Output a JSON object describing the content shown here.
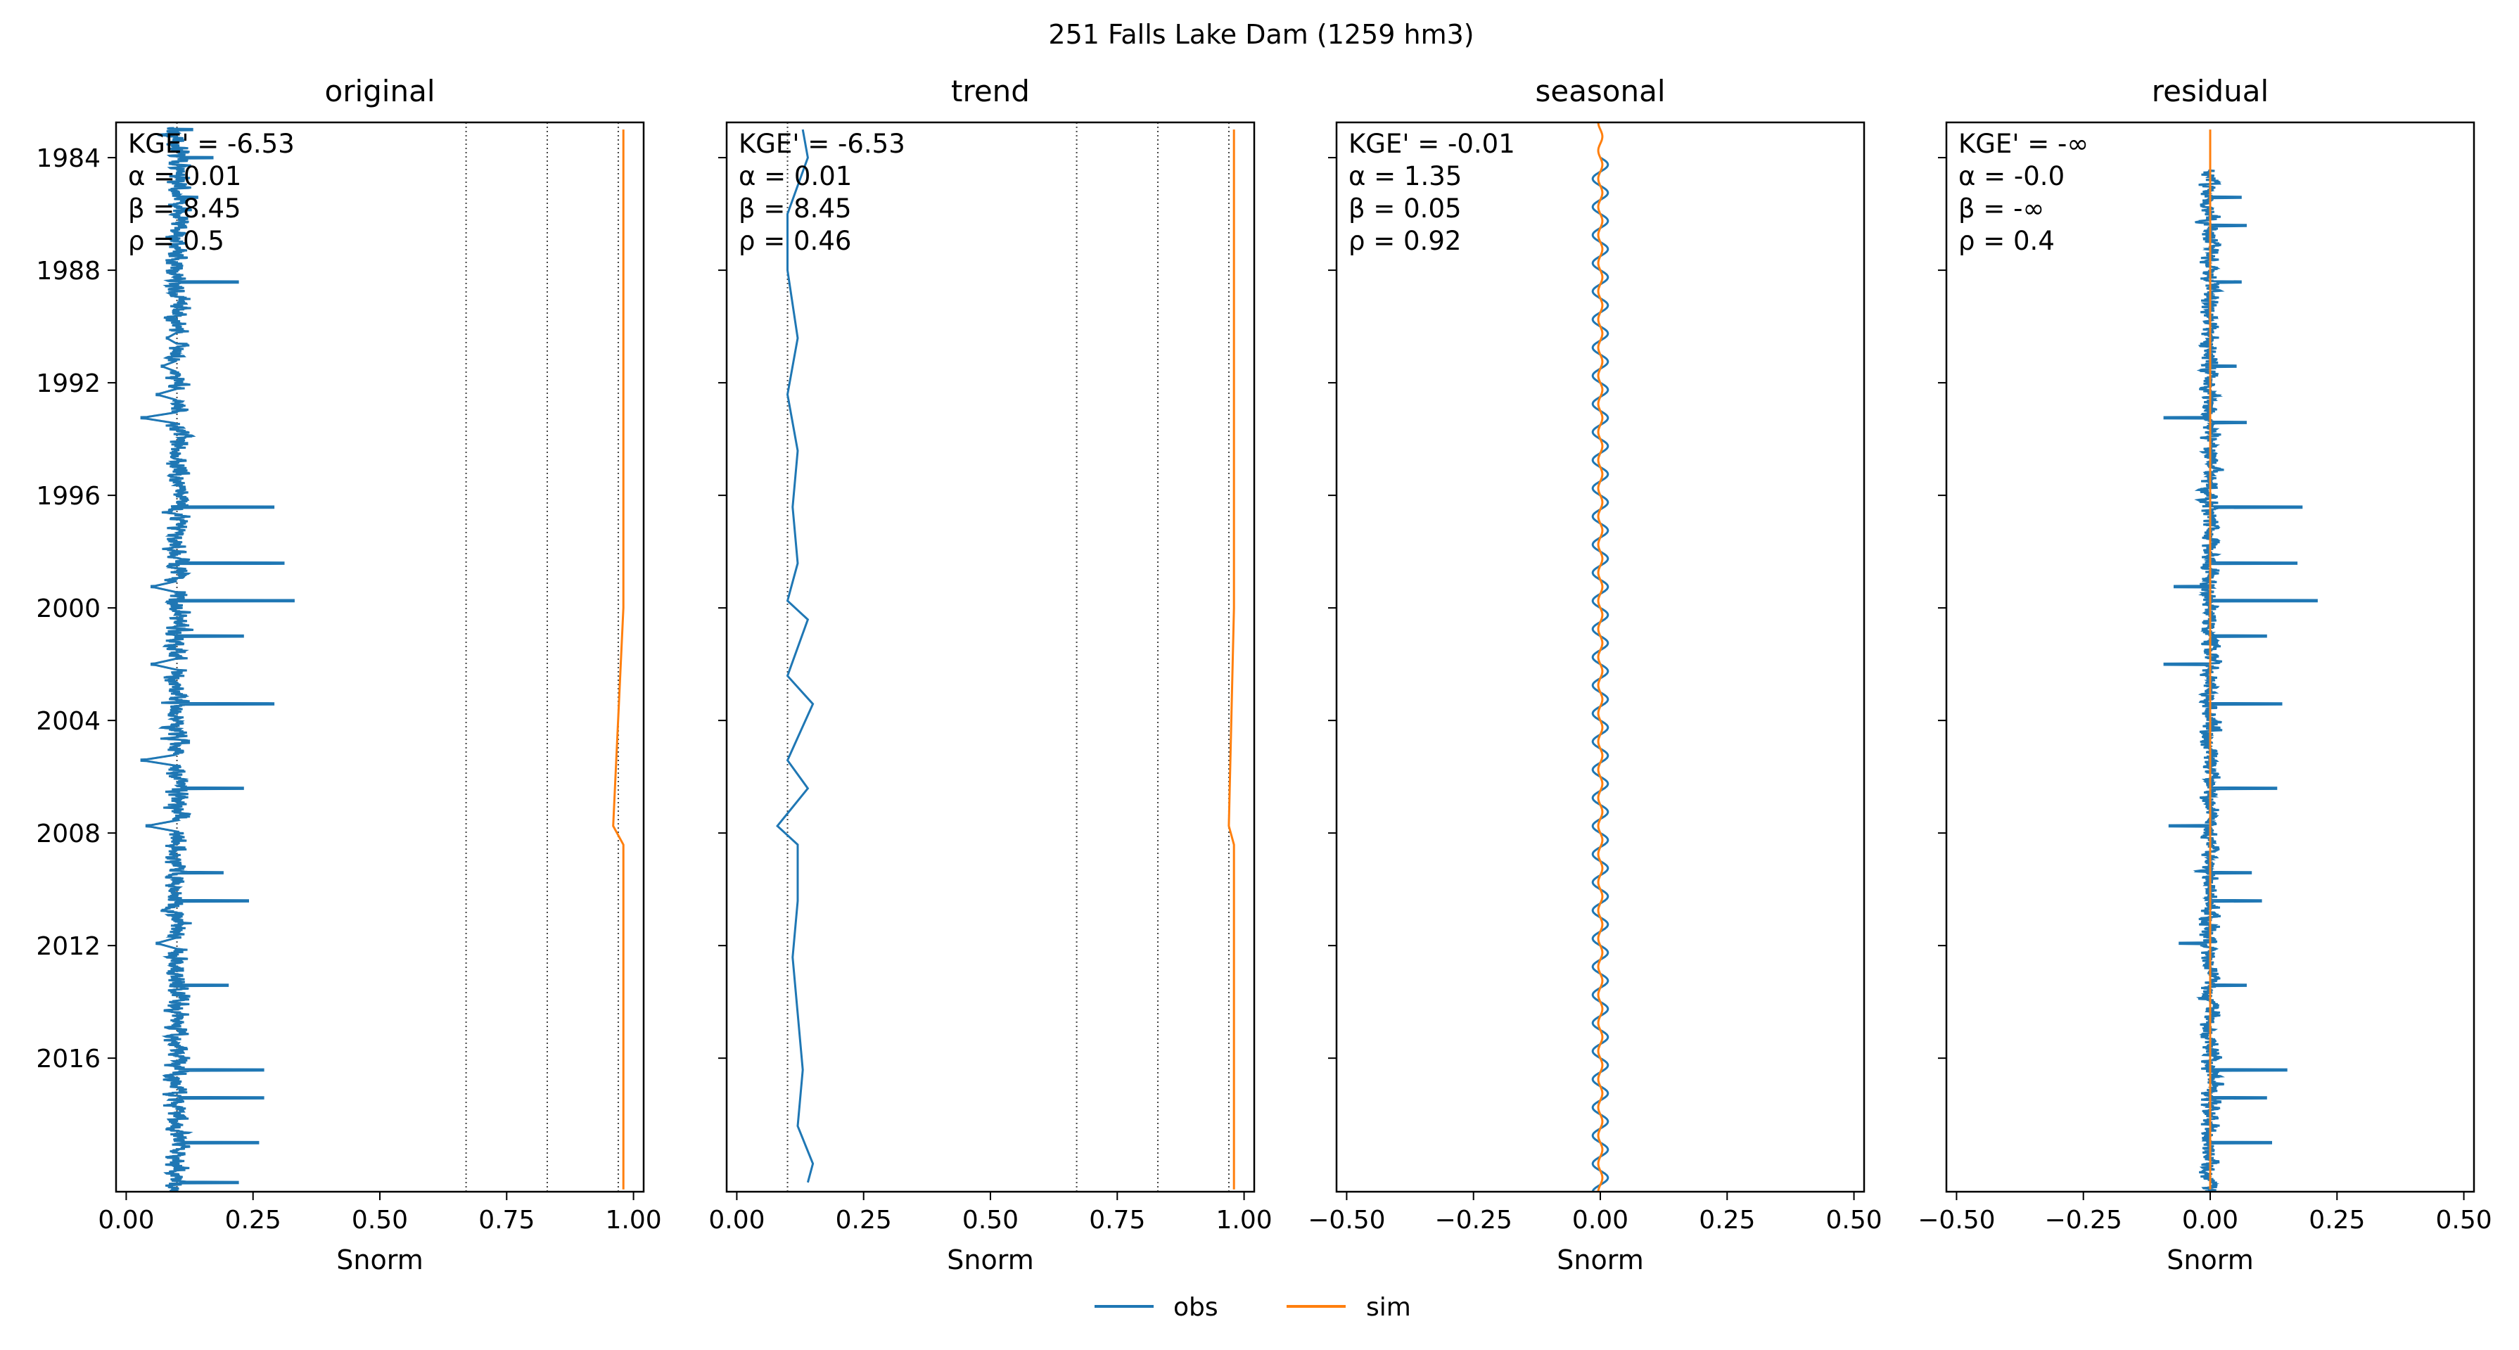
{
  "figure": {
    "title": "251  Falls Lake Dam (1259 hm3)"
  },
  "legend": {
    "items": [
      {
        "label": "obs",
        "color": "#1f77b4"
      },
      {
        "label": "sim",
        "color": "#ff7f0e"
      }
    ],
    "placement": "bottom-center"
  },
  "colors": {
    "obs": "#1f77b4",
    "sim": "#ff7f0e",
    "axes": "#000000"
  },
  "chart_data": [
    {
      "type": "line",
      "title": "original",
      "xlabel": "Snorm",
      "ylabel": "",
      "xlim": [
        -0.02,
        1.02
      ],
      "ylim": [
        "1982-10-01",
        "2020-09-30"
      ],
      "xticks": [
        "0.00",
        "0.25",
        "0.50",
        "0.75",
        "1.00"
      ],
      "yticks": [
        "1984",
        "1988",
        "1992",
        "1996",
        "2000",
        "2004",
        "2008",
        "2012",
        "2016"
      ],
      "reference_lines_x": [
        0.1,
        0.67,
        0.83,
        0.97
      ],
      "stats": [
        "KGE' = -6.53",
        "α = 0.01",
        "β = 8.45",
        "ρ = 0.5"
      ],
      "series": [
        {
          "name": "obs",
          "description": "daily normalized storage, base about 0.10 with spikes",
          "points": [
            [
              "1983-01-01",
              0.13
            ],
            [
              "1984-01-01",
              0.17
            ],
            [
              "1985-06-01",
              0.14
            ],
            [
              "1986-03-01",
              0.12
            ],
            [
              "1987-01-01",
              0.11
            ],
            [
              "1988-06-01",
              0.22
            ],
            [
              "1989-10-01",
              0.1
            ],
            [
              "1990-06-01",
              0.08
            ],
            [
              "1991-06-01",
              0.07
            ],
            [
              "1992-06-01",
              0.06
            ],
            [
              "1993-04-01",
              0.03
            ],
            [
              "1994-03-01",
              0.12
            ],
            [
              "1996-06-01",
              0.29
            ],
            [
              "1998-06-01",
              0.31
            ],
            [
              "1999-04-01",
              0.05
            ],
            [
              "1999-10-01",
              0.33
            ],
            [
              "2001-01-01",
              0.23
            ],
            [
              "2002-01-01",
              0.05
            ],
            [
              "2003-06-01",
              0.29
            ],
            [
              "2005-06-01",
              0.03
            ],
            [
              "2006-06-01",
              0.23
            ],
            [
              "2007-10-01",
              0.04
            ],
            [
              "2009-06-01",
              0.19
            ],
            [
              "2010-06-01",
              0.24
            ],
            [
              "2011-12-01",
              0.06
            ],
            [
              "2013-06-01",
              0.2
            ],
            [
              "2016-06-01",
              0.27
            ],
            [
              "2017-06-01",
              0.27
            ],
            [
              "2019-01-01",
              0.26
            ],
            [
              "2020-06-01",
              0.22
            ]
          ]
        },
        {
          "name": "sim",
          "description": "nearly constant near 0.98",
          "points": [
            [
              "1983-01-01",
              0.98
            ],
            [
              "1991-01-01",
              0.98
            ],
            [
              "2000-01-01",
              0.98
            ],
            [
              "2007-10-01",
              0.96
            ],
            [
              "2008-06-01",
              0.98
            ],
            [
              "2020-09-01",
              0.98
            ]
          ]
        }
      ]
    },
    {
      "type": "line",
      "title": "trend",
      "xlabel": "Snorm",
      "ylabel": "",
      "xlim": [
        -0.02,
        1.02
      ],
      "ylim": [
        "1982-10-01",
        "2020-09-30"
      ],
      "xticks": [
        "0.00",
        "0.25",
        "0.50",
        "0.75",
        "1.00"
      ],
      "yticks": [],
      "reference_lines_x": [
        0.1,
        0.67,
        0.83,
        0.97
      ],
      "stats": [
        "KGE' = -6.53",
        "α = 0.01",
        "β = 8.45",
        "ρ = 0.46"
      ],
      "series": [
        {
          "name": "obs",
          "description": "smoothed trend near 0.10",
          "points": [
            [
              "1983-01-01",
              0.13
            ],
            [
              "1984-01-01",
              0.14
            ],
            [
              "1986-01-01",
              0.1
            ],
            [
              "1988-01-01",
              0.1
            ],
            [
              "1990-06-01",
              0.12
            ],
            [
              "1992-06-01",
              0.1
            ],
            [
              "1994-06-01",
              0.12
            ],
            [
              "1996-06-01",
              0.11
            ],
            [
              "1998-06-01",
              0.12
            ],
            [
              "1999-10-01",
              0.1
            ],
            [
              "2000-06-01",
              0.14
            ],
            [
              "2002-06-01",
              0.1
            ],
            [
              "2003-06-01",
              0.15
            ],
            [
              "2005-06-01",
              0.1
            ],
            [
              "2006-06-01",
              0.14
            ],
            [
              "2007-10-01",
              0.08
            ],
            [
              "2008-06-01",
              0.12
            ],
            [
              "2010-06-01",
              0.12
            ],
            [
              "2012-06-01",
              0.11
            ],
            [
              "2014-06-01",
              0.12
            ],
            [
              "2016-06-01",
              0.13
            ],
            [
              "2018-06-01",
              0.12
            ],
            [
              "2019-10-01",
              0.15
            ],
            [
              "2020-06-01",
              0.14
            ]
          ]
        },
        {
          "name": "sim",
          "description": "nearly constant near 0.98",
          "points": [
            [
              "1983-01-01",
              0.98
            ],
            [
              "2000-01-01",
              0.98
            ],
            [
              "2007-10-01",
              0.97
            ],
            [
              "2008-06-01",
              0.98
            ],
            [
              "2020-09-01",
              0.98
            ]
          ]
        }
      ]
    },
    {
      "type": "line",
      "title": "seasonal",
      "xlabel": "Snorm",
      "ylabel": "",
      "xlim": [
        -0.52,
        0.52
      ],
      "ylim": [
        "1982-10-01",
        "2020-09-30"
      ],
      "xticks": [
        "−0.50",
        "−0.25",
        "0.00",
        "0.25",
        "0.50"
      ],
      "yticks": [],
      "reference_lines_x": [],
      "stats": [
        "KGE' = -0.01",
        "α = 1.35",
        "β = 0.05",
        "ρ = 0.92"
      ],
      "series": [
        {
          "name": "obs",
          "description": "annual cycle with amplitude about 0.015, from 1984 to 2020",
          "amplitude": 0.015,
          "start": "1984-01-01",
          "end": "2020-09-30"
        },
        {
          "name": "sim",
          "description": "annual cycle with amplitude about 0.004",
          "amplitude": 0.004,
          "start": "1982-10-01",
          "end": "2020-09-30"
        }
      ]
    },
    {
      "type": "line",
      "title": "residual",
      "xlabel": "Snorm",
      "ylabel": "",
      "xlim": [
        -0.52,
        0.52
      ],
      "ylim": [
        "1982-10-01",
        "2020-09-30"
      ],
      "xticks": [
        "−0.50",
        "−0.25",
        "0.00",
        "0.25",
        "0.50"
      ],
      "yticks": [],
      "reference_lines_x": [],
      "stats": [
        "KGE' = -∞",
        "α = -0.0",
        "β = -∞",
        "ρ = 0.4"
      ],
      "series": [
        {
          "name": "obs",
          "description": "residual around 0 with spikes",
          "points": [
            [
              "1984-06-01",
              0.05
            ],
            [
              "1985-06-01",
              0.06
            ],
            [
              "1986-06-01",
              0.07
            ],
            [
              "1988-06-01",
              0.06
            ],
            [
              "1991-06-01",
              0.05
            ],
            [
              "1993-06-01",
              0.07
            ],
            [
              "1996-06-01",
              0.18
            ],
            [
              "1998-06-01",
              0.17
            ],
            [
              "1999-10-01",
              0.21
            ],
            [
              "2001-01-01",
              0.11
            ],
            [
              "2003-06-01",
              0.14
            ],
            [
              "2006-06-01",
              0.13
            ],
            [
              "2009-06-01",
              0.08
            ],
            [
              "2010-06-01",
              0.1
            ],
            [
              "2013-06-01",
              0.07
            ],
            [
              "2016-06-01",
              0.15
            ],
            [
              "2017-06-01",
              0.11
            ],
            [
              "2019-01-01",
              0.12
            ],
            [
              "1993-04-01",
              -0.09
            ],
            [
              "2002-01-01",
              -0.09
            ],
            [
              "2007-10-01",
              -0.08
            ],
            [
              "1999-04-01",
              -0.07
            ],
            [
              "2011-12-01",
              -0.06
            ]
          ]
        },
        {
          "name": "sim",
          "description": "small residual near 0",
          "points": [
            [
              "1983-01-01",
              0.0
            ],
            [
              "2020-09-01",
              0.0
            ]
          ]
        }
      ]
    }
  ]
}
